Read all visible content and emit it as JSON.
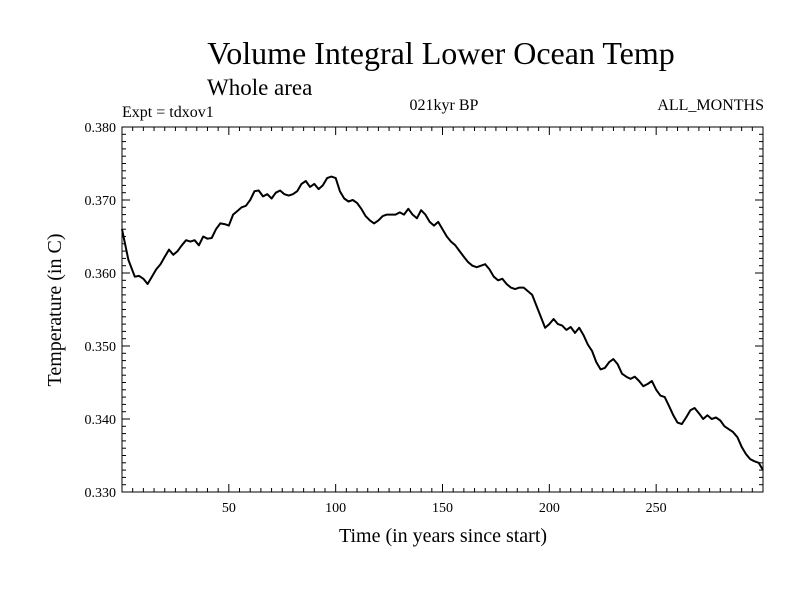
{
  "chart_data": {
    "type": "line",
    "title": "Volume Integral Lower Ocean Temp",
    "subtitle": "Whole area",
    "experiment_label": "Expt = tdxov1",
    "period_label": "021kyr BP",
    "months_label": "ALL_MONTHS",
    "xlabel": "Time (in years since start)",
    "ylabel": "Temperature (in C)",
    "xlim": [
      0,
      300
    ],
    "ylim": [
      0.33,
      0.38
    ],
    "xticks": [
      50,
      100,
      150,
      200,
      250
    ],
    "xtick_labels": [
      "50",
      "100",
      "150",
      "200",
      "250"
    ],
    "yticks": [
      0.33,
      0.34,
      0.35,
      0.36,
      0.37,
      0.38
    ],
    "ytick_labels": [
      "0.330",
      "0.340",
      "0.350",
      "0.360",
      "0.370",
      "0.380"
    ],
    "grid": false,
    "series": [
      {
        "name": "Volume Integral Lower Ocean Temp",
        "color": "#000000",
        "x": [
          0,
          3,
          6,
          8,
          10,
          12,
          14,
          16,
          18,
          20,
          22,
          24,
          26,
          28,
          30,
          32,
          34,
          36,
          38,
          40,
          42,
          44,
          46,
          48,
          50,
          52,
          54,
          56,
          58,
          60,
          62,
          64,
          66,
          68,
          70,
          72,
          74,
          76,
          78,
          80,
          82,
          84,
          86,
          88,
          90,
          92,
          94,
          96,
          98,
          100,
          102,
          104,
          106,
          108,
          110,
          112,
          114,
          116,
          118,
          120,
          122,
          124,
          126,
          128,
          130,
          132,
          134,
          136,
          138,
          140,
          142,
          144,
          146,
          148,
          150,
          152,
          154,
          156,
          158,
          160,
          162,
          164,
          166,
          168,
          170,
          172,
          174,
          176,
          178,
          180,
          182,
          184,
          186,
          188,
          190,
          192,
          194,
          196,
          198,
          200,
          202,
          204,
          206,
          208,
          210,
          212,
          214,
          216,
          218,
          220,
          222,
          224,
          226,
          228,
          230,
          232,
          234,
          236,
          238,
          240,
          242,
          244,
          246,
          248,
          250,
          252,
          254,
          256,
          258,
          260,
          262,
          264,
          266,
          268,
          270,
          272,
          274,
          276,
          278,
          280,
          282,
          284,
          286,
          288,
          290,
          292,
          294,
          296,
          298,
          300
        ],
        "values": [
          0.366,
          0.3618,
          0.3595,
          0.3596,
          0.3592,
          0.3585,
          0.3595,
          0.3605,
          0.3612,
          0.3622,
          0.3632,
          0.3625,
          0.363,
          0.3638,
          0.3645,
          0.3643,
          0.3645,
          0.3638,
          0.365,
          0.3647,
          0.3648,
          0.366,
          0.3668,
          0.3667,
          0.3665,
          0.368,
          0.3685,
          0.369,
          0.3692,
          0.37,
          0.3712,
          0.3713,
          0.3705,
          0.3708,
          0.3702,
          0.371,
          0.3713,
          0.3708,
          0.3706,
          0.3708,
          0.3712,
          0.3722,
          0.3726,
          0.3718,
          0.3722,
          0.3715,
          0.372,
          0.373,
          0.3732,
          0.373,
          0.3712,
          0.3702,
          0.3698,
          0.37,
          0.3696,
          0.3688,
          0.3678,
          0.3672,
          0.3668,
          0.3672,
          0.3678,
          0.368,
          0.368,
          0.368,
          0.3683,
          0.368,
          0.3688,
          0.368,
          0.3675,
          0.3686,
          0.368,
          0.367,
          0.3665,
          0.367,
          0.366,
          0.365,
          0.3643,
          0.3638,
          0.363,
          0.3622,
          0.3615,
          0.361,
          0.3608,
          0.361,
          0.3612,
          0.3605,
          0.3595,
          0.359,
          0.3592,
          0.3585,
          0.358,
          0.3578,
          0.358,
          0.358,
          0.3575,
          0.357,
          0.3555,
          0.354,
          0.3525,
          0.353,
          0.3537,
          0.353,
          0.3528,
          0.3522,
          0.3526,
          0.3518,
          0.3525,
          0.3515,
          0.3502,
          0.3493,
          0.3478,
          0.3468,
          0.347,
          0.3478,
          0.3482,
          0.3475,
          0.3462,
          0.3458,
          0.3455,
          0.3458,
          0.3452,
          0.3445,
          0.3448,
          0.3452,
          0.344,
          0.3432,
          0.343,
          0.3418,
          0.3405,
          0.3395,
          0.3393,
          0.3402,
          0.3412,
          0.3415,
          0.3408,
          0.34,
          0.3405,
          0.34,
          0.3402,
          0.3398,
          0.339,
          0.3386,
          0.3382,
          0.3375,
          0.3362,
          0.3352,
          0.3345,
          0.3342,
          0.334,
          0.333
        ]
      }
    ]
  }
}
